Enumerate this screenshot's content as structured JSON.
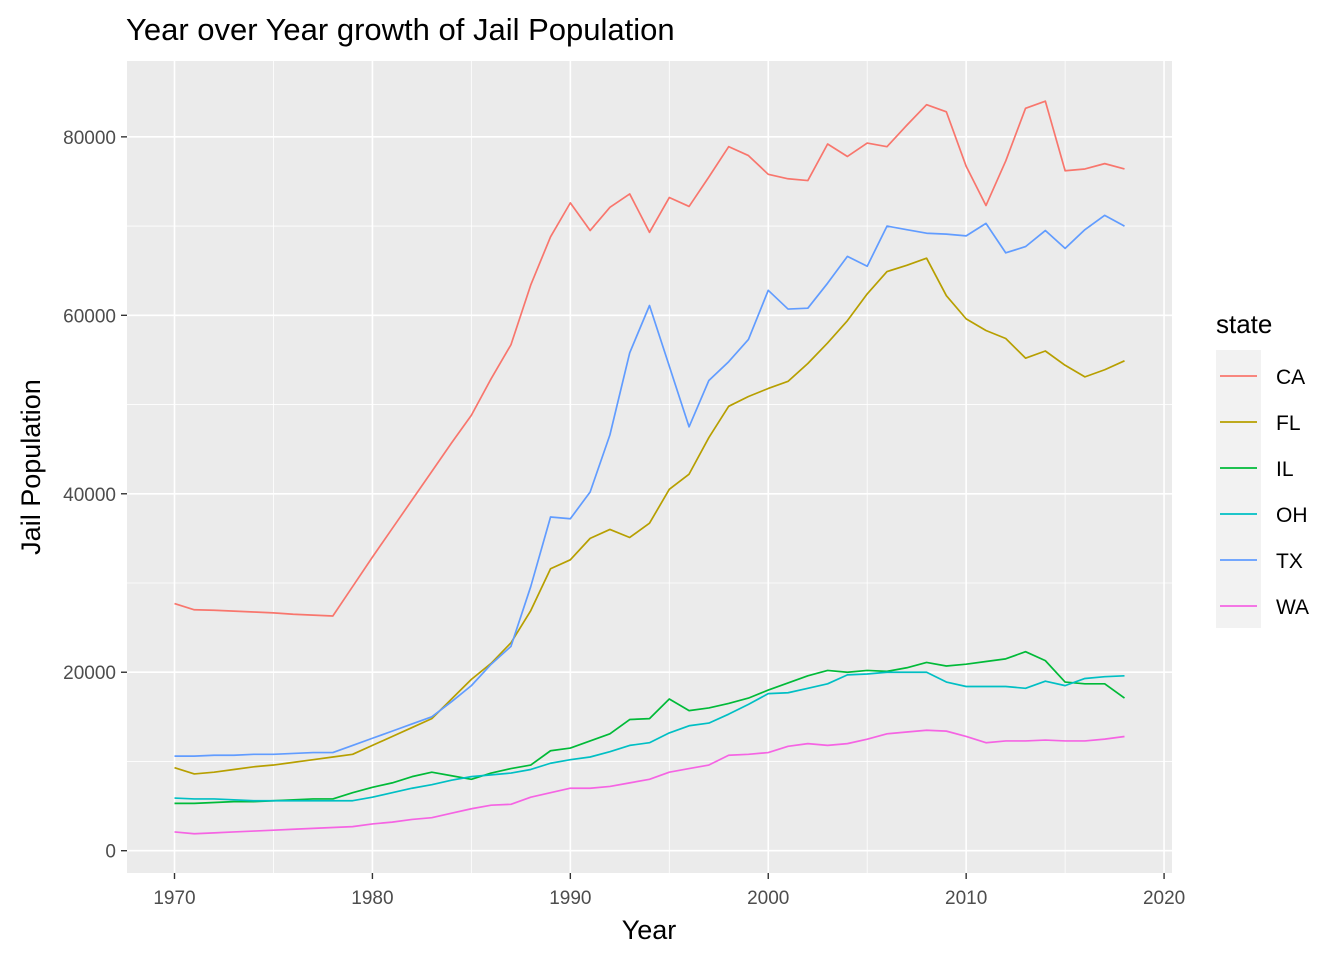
{
  "chart_data": {
    "type": "line",
    "title": "Year over Year growth of Jail Population",
    "xlabel": "Year",
    "ylabel": "Jail Population",
    "xlim": [
      1967.6,
      2020.4
    ],
    "ylim": [
      -2500,
      88500
    ],
    "x_ticks": [
      1970,
      1980,
      1990,
      2000,
      2010,
      2020
    ],
    "y_ticks": [
      0,
      20000,
      40000,
      60000,
      80000
    ],
    "grid": true,
    "legend": {
      "title": "state",
      "position": "right"
    },
    "x": [
      1970,
      1971,
      1972,
      1973,
      1974,
      1975,
      1976,
      1977,
      1978,
      1979,
      1980,
      1981,
      1982,
      1983,
      1984,
      1985,
      1986,
      1987,
      1988,
      1989,
      1990,
      1991,
      1992,
      1993,
      1994,
      1995,
      1996,
      1997,
      1998,
      1999,
      2000,
      2001,
      2002,
      2003,
      2004,
      2005,
      2006,
      2007,
      2008,
      2009,
      2010,
      2011,
      2012,
      2013,
      2014,
      2015,
      2016,
      2017,
      2018
    ],
    "series": [
      {
        "name": "CA",
        "color": "#F8766D",
        "values": [
          27700,
          27000,
          26950,
          26850,
          26750,
          26650,
          26500,
          26400,
          26300,
          29600,
          32900,
          36100,
          39300,
          42500,
          45700,
          48800,
          52900,
          56700,
          63400,
          68800,
          72600,
          69500,
          72100,
          73600,
          69300,
          73200,
          72200,
          75500,
          78900,
          77900,
          75800,
          75300,
          75100,
          79200,
          77800,
          79300,
          78900,
          81300,
          83600,
          82800,
          76700,
          72300,
          77300,
          83200,
          84000,
          76200,
          76400,
          77000,
          76400
        ]
      },
      {
        "name": "FL",
        "color": "#B79F00",
        "values": [
          9300,
          8600,
          8800,
          9100,
          9400,
          9600,
          9900,
          10200,
          10500,
          10800,
          11800,
          12800,
          13800,
          14800,
          17000,
          19200,
          21000,
          23300,
          26900,
          31600,
          32600,
          35000,
          36000,
          35100,
          36700,
          40500,
          42200,
          46300,
          49800,
          50900,
          51800,
          52600,
          54600,
          56900,
          59400,
          62400,
          64900,
          65600,
          66400,
          62200,
          59600,
          58300,
          57400,
          55200,
          56000,
          54400,
          53100,
          53900,
          54900
        ]
      },
      {
        "name": "IL",
        "color": "#00BA38",
        "values": [
          5300,
          5300,
          5400,
          5500,
          5500,
          5600,
          5700,
          5800,
          5800,
          6500,
          7100,
          7600,
          8300,
          8800,
          8400,
          8000,
          8700,
          9200,
          9600,
          11200,
          11500,
          12300,
          13100,
          14700,
          14800,
          17000,
          15700,
          16000,
          16500,
          17100,
          18000,
          18800,
          19600,
          20200,
          20000,
          20200,
          20100,
          20500,
          21100,
          20700,
          20900,
          21200,
          21500,
          22300,
          21300,
          18900,
          18700,
          18700,
          17100
        ]
      },
      {
        "name": "OH",
        "color": "#00BFC4",
        "values": [
          5900,
          5800,
          5800,
          5700,
          5600,
          5600,
          5600,
          5600,
          5600,
          5600,
          6000,
          6500,
          7000,
          7400,
          7900,
          8300,
          8500,
          8700,
          9100,
          9800,
          10200,
          10500,
          11100,
          11800,
          12100,
          13200,
          14000,
          14300,
          15300,
          16400,
          17600,
          17700,
          18200,
          18700,
          19700,
          19800,
          20000,
          20000,
          20000,
          18900,
          18400,
          18400,
          18400,
          18200,
          19000,
          18500,
          19300,
          19500,
          19600
        ]
      },
      {
        "name": "TX",
        "color": "#619CFF",
        "values": [
          10600,
          10600,
          10700,
          10700,
          10800,
          10800,
          10900,
          11000,
          11000,
          11800,
          12600,
          13400,
          14200,
          15000,
          16700,
          18500,
          20900,
          22900,
          29600,
          37400,
          37200,
          40200,
          46600,
          55800,
          61100,
          54300,
          47500,
          52700,
          54800,
          57300,
          62800,
          60700,
          60800,
          63600,
          66600,
          65500,
          70000,
          69600,
          69200,
          69100,
          68900,
          70300,
          67000,
          67700,
          69500,
          67500,
          69600,
          71200,
          70000
        ]
      },
      {
        "name": "WA",
        "color": "#F564E3",
        "values": [
          2100,
          1900,
          2000,
          2100,
          2200,
          2300,
          2400,
          2500,
          2600,
          2700,
          3000,
          3200,
          3500,
          3700,
          4200,
          4700,
          5100,
          5200,
          6000,
          6500,
          7000,
          7000,
          7200,
          7600,
          8000,
          8800,
          9200,
          9600,
          10700,
          10800,
          11000,
          11700,
          12000,
          11800,
          12000,
          12500,
          13100,
          13300,
          13500,
          13400,
          12800,
          12100,
          12300,
          12300,
          12400,
          12300,
          12300,
          12500,
          12800
        ]
      }
    ]
  }
}
